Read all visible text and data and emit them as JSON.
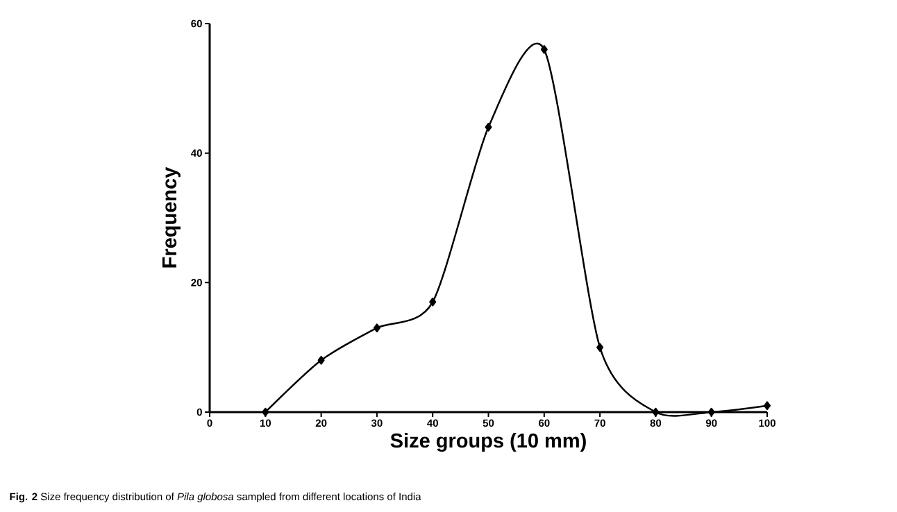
{
  "chart_data": {
    "type": "line",
    "xlabel": "Size groups (10 mm)",
    "ylabel": "Frequency",
    "x": [
      10,
      20,
      30,
      40,
      50,
      60,
      70,
      80,
      90,
      100
    ],
    "series": [
      {
        "color": "#000000",
        "values": [
          0,
          8,
          13,
          17,
          44,
          56,
          10,
          0,
          0,
          1
        ]
      }
    ],
    "xlim": [
      0,
      100
    ],
    "xticks": [
      0,
      10,
      20,
      30,
      40,
      50,
      60,
      70,
      80,
      90,
      100
    ],
    "ylim": [
      0,
      60
    ],
    "yticks": [
      0,
      20,
      40,
      60
    ],
    "marker": "diamond",
    "line_style": "solid",
    "annotations": [
      "**Fig. 2** Size frequency distribution of *Pila globosa* sampled from different locations of India"
    ]
  }
}
